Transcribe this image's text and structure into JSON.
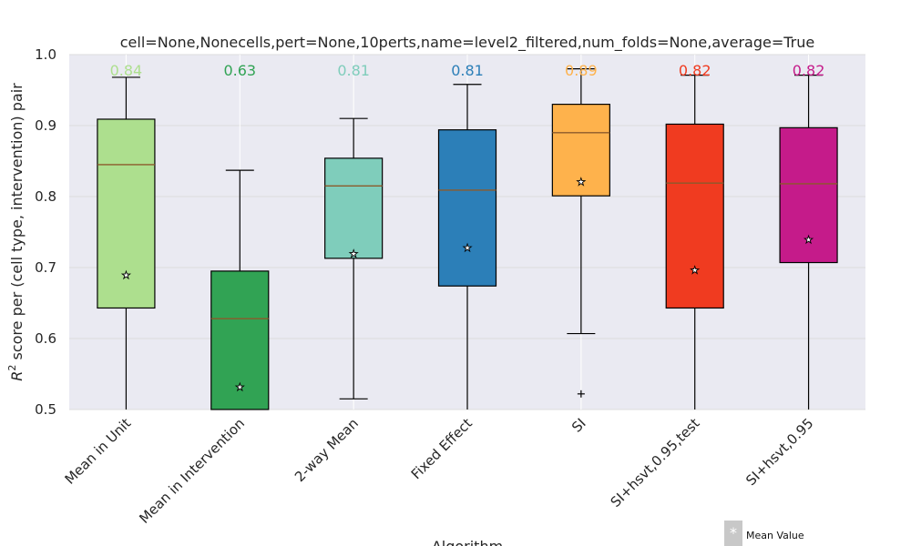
{
  "chart_data": {
    "type": "box",
    "title": "cell=None,Nonecells,pert=None,10perts,name=level2_filtered,num_folds=None,average=True",
    "xlabel": "Algorithm",
    "ylabel_prefix": "R",
    "ylabel_sup": "2",
    "ylabel_rest": " score per (cell type, intervention) pair",
    "ylim": [
      0.5,
      1.0
    ],
    "yticks": [
      "0.5",
      "0.6",
      "0.7",
      "0.8",
      "0.9",
      "1.0"
    ],
    "grid": true,
    "legend": {
      "label": "Mean Value",
      "marker": "*",
      "position": "bottom-right"
    },
    "series": [
      {
        "name": "Mean in Unit",
        "color": "#addf8e",
        "median_label": "0.84",
        "whisker_low": 0.45,
        "q1": 0.643,
        "median": 0.845,
        "q3": 0.909,
        "whisker_high": 0.968,
        "mean": 0.69,
        "outliers": []
      },
      {
        "name": "Mean in Intervention",
        "color": "#31a354",
        "median_label": "0.63",
        "whisker_low": 0.45,
        "q1": 0.45,
        "median": 0.628,
        "q3": 0.695,
        "whisker_high": 0.837,
        "mean": 0.532,
        "outliers": []
      },
      {
        "name": "2-way Mean",
        "color": "#7fcdbb",
        "median_label": "0.81",
        "whisker_low": 0.515,
        "q1": 0.713,
        "median": 0.815,
        "q3": 0.854,
        "whisker_high": 0.91,
        "mean": 0.72,
        "outliers": []
      },
      {
        "name": "Fixed Effect",
        "color": "#2c7fb8",
        "median_label": "0.81",
        "whisker_low": 0.45,
        "q1": 0.674,
        "median": 0.809,
        "q3": 0.894,
        "whisker_high": 0.958,
        "mean": 0.728,
        "outliers": []
      },
      {
        "name": "SI",
        "color": "#feb24c",
        "median_label": "0.89",
        "whisker_low": 0.607,
        "q1": 0.801,
        "median": 0.89,
        "q3": 0.93,
        "whisker_high": 0.98,
        "mean": 0.821,
        "outliers": [
          0.522
        ]
      },
      {
        "name": "SI+hsvt,0.95,test",
        "color": "#f03b20",
        "median_label": "0.82",
        "whisker_low": 0.45,
        "q1": 0.643,
        "median": 0.819,
        "q3": 0.902,
        "whisker_high": 0.971,
        "mean": 0.697,
        "outliers": []
      },
      {
        "name": "SI+hsvt,0.95",
        "color": "#c51b8a",
        "median_label": "0.82",
        "whisker_low": 0.45,
        "q1": 0.707,
        "median": 0.818,
        "q3": 0.897,
        "whisker_high": 0.971,
        "mean": 0.74,
        "outliers": []
      }
    ]
  }
}
